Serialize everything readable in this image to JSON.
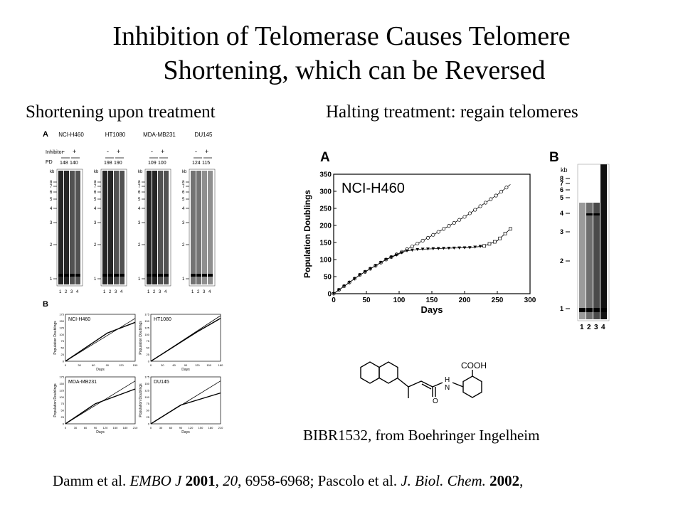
{
  "title": {
    "line1": "Inhibition of Telomerase Causes Telomere",
    "line2": "Shortening, which can be Reversed"
  },
  "subtitles": {
    "left": "Shortening upon treatment",
    "right": "Halting treatment: regain telomeres"
  },
  "left_figure": {
    "panel_a_letter": "A",
    "panel_b_letter": "B",
    "inhibitor_label": "Inhibitor",
    "pd_label": "PD",
    "kb_label": "kb",
    "signs": [
      "-",
      "+"
    ],
    "lanes": [
      "1",
      "2",
      "3",
      "4"
    ],
    "gels": [
      {
        "name": "NCI-H460",
        "pd": [
          "148",
          "140"
        ]
      },
      {
        "name": "HT1080",
        "pd": [
          "198",
          "190"
        ]
      },
      {
        "name": "MDA-MB231",
        "pd": [
          "109",
          "100"
        ]
      },
      {
        "name": "DU145",
        "pd": [
          "124",
          "115"
        ]
      }
    ],
    "kb_ticks": [
      "8",
      "7",
      "6",
      "5",
      "4",
      "3",
      "2",
      "1"
    ],
    "mini_charts": [
      {
        "label": "NCI-H460",
        "xticks": [
          "0",
          "30",
          "60",
          "90",
          "120",
          "150"
        ],
        "yticks": [
          "0",
          "25",
          "50",
          "75",
          "100",
          "125",
          "150",
          "175"
        ],
        "xmax": 150
      },
      {
        "label": "HT1080",
        "xticks": [
          "0",
          "30",
          "60",
          "90",
          "120",
          "150",
          "180"
        ],
        "yticks": [
          "0",
          "25",
          "50",
          "75",
          "100",
          "125",
          "150",
          "175"
        ],
        "xmax": 180
      },
      {
        "label": "MDA-MB231",
        "xticks": [
          "0",
          "30",
          "60",
          "90",
          "120",
          "150",
          "180",
          "210"
        ],
        "yticks": [
          "0",
          "25",
          "50",
          "75",
          "100",
          "125",
          "150",
          "175"
        ],
        "xmax": 210
      },
      {
        "label": "DU145",
        "xticks": [
          "0",
          "30",
          "60",
          "90",
          "120",
          "150",
          "180",
          "210"
        ],
        "yticks": [
          "0",
          "25",
          "50",
          "75",
          "100",
          "125",
          "150",
          "175"
        ],
        "xmax": 210
      }
    ],
    "mini_xlabel": "Days",
    "mini_ylabel": "Population Doublings"
  },
  "chart_data": {
    "type": "line",
    "panel_letter": "A",
    "title": "NCI-H460",
    "xlabel": "Days",
    "ylabel": "Population Doublings",
    "xlim": [
      0,
      300
    ],
    "ylim": [
      0,
      350
    ],
    "xticks": [
      0,
      50,
      100,
      150,
      200,
      250,
      300
    ],
    "yticks": [
      0,
      50,
      100,
      150,
      200,
      250,
      300,
      350
    ],
    "series": [
      {
        "marker": "circle",
        "x": [
          0,
          40,
          80,
          110,
          150,
          200,
          250,
          270
        ],
        "y": [
          0,
          55,
          100,
          128,
          170,
          225,
          290,
          320
        ]
      },
      {
        "marker": "triangle",
        "x": [
          0,
          40,
          80,
          110,
          130,
          170,
          210,
          230
        ],
        "y": [
          0,
          55,
          100,
          125,
          130,
          133,
          135,
          140
        ]
      },
      {
        "marker": "square",
        "x": [
          230,
          250,
          270
        ],
        "y": [
          140,
          155,
          190
        ]
      }
    ]
  },
  "right_gel": {
    "panel_letter": "B",
    "kb_label": "kb",
    "kb_ticks": [
      "8",
      "7",
      "6",
      "5",
      "4",
      "3",
      "2",
      "1"
    ],
    "lanes": [
      "1",
      "2",
      "3",
      "4"
    ]
  },
  "compound": {
    "substituent": "COOH",
    "amide_n": "N",
    "amide_h": "H",
    "carbonyl_o": "O",
    "caption": "BIBR1532, from Boehringer Ingelheim"
  },
  "citation": {
    "authors1": "Damm et al. ",
    "journal1": "EMBO J",
    "year1": "2001",
    "vol1": "20",
    "pages1": ", 6958-6968; Pascolo et al. ",
    "journal2": "J. Biol. Chem.",
    "year2": "2002",
    "sep": ", ",
    "end": ","
  }
}
